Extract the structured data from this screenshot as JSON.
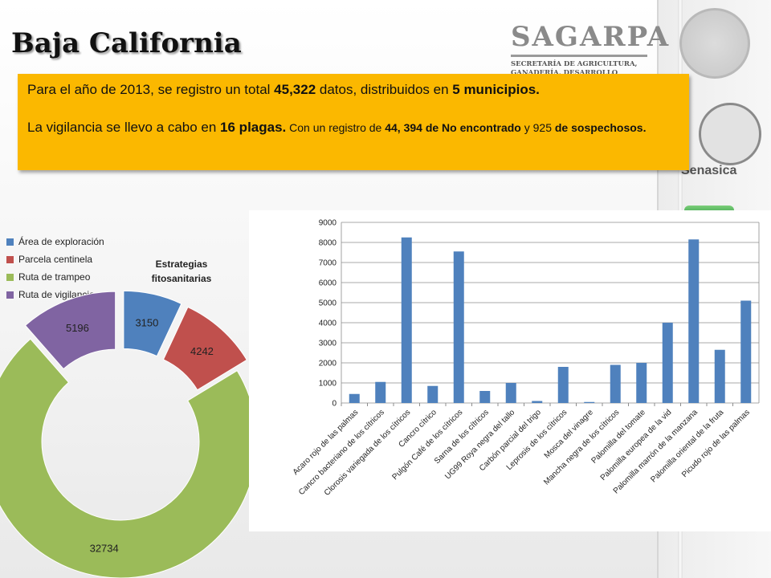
{
  "slide": {
    "title": "Baja California"
  },
  "logos": {
    "sagarpa_name": "SAGARPA",
    "sagarpa_sub1": "SECRETARÍA DE AGRICULTURA,",
    "sagarpa_sub2": "GANADERÍA, DESARROLLO RURAL,",
    "senasica": "Senasica"
  },
  "info": {
    "line1_a": "Para el año de 2013,  se registro un total ",
    "line1_b": "45,322",
    "line1_c": "  datos, distribuidos en  ",
    "line1_d": "5 municipios.",
    "line2_a": "La vigilancia se llevo a cabo en ",
    "line2_b": "16 plagas.",
    "line2_c": " Con un registro de ",
    "line2_d": "44, 394 de No encontrado",
    "line2_e": " y 925 ",
    "line2_f": "de sospechosos."
  },
  "colors": {
    "accent_box": "#fbb800",
    "bar": "#4f81bd"
  },
  "chart_data": [
    {
      "type": "pie",
      "title": "Estrategias fitosanitarias",
      "title_line1": "Estrategias",
      "title_line2": "fitosanitarias",
      "legend_position": "top-left",
      "categories": [
        "Área de  exploración",
        "Parcela centinela",
        "Ruta de trampeo",
        "Ruta de vigilancia"
      ],
      "values": [
        3150,
        4242,
        32734,
        5196
      ],
      "colors": [
        "#4f81bd",
        "#c0504d",
        "#9bbb59",
        "#8064a2"
      ]
    },
    {
      "type": "bar",
      "categories": [
        "Acaro rojo de las palmas",
        "Cancro bacteriano de los cítricos",
        "Clorosis variegada de los cítricos",
        "Cancro cítrico",
        "Pulgón Café de los cítricos",
        "Sarna de los cítricos",
        "UG99 Roya negra del tallo",
        "Carbón parcial del trigo",
        "Leprosis de los cítricos",
        "Mosca del vinagre",
        "Mancha negra de los cítricos",
        "Palomilla del tomate",
        "Palomilla europea de la vid",
        "Palomilla marrón de la manzana",
        "Palomilla oriental de la fruta",
        "Picudo rojo de las palmas"
      ],
      "values": [
        450,
        1050,
        8250,
        850,
        7550,
        600,
        1000,
        100,
        1800,
        50,
        1900,
        2000,
        4000,
        8150,
        2650,
        5100
      ],
      "yticks": [
        "0",
        "1000",
        "2000",
        "3000",
        "4000",
        "5000",
        "6000",
        "7000",
        "8000",
        "9000"
      ],
      "ylim": [
        0,
        9000
      ],
      "grid": true
    }
  ]
}
